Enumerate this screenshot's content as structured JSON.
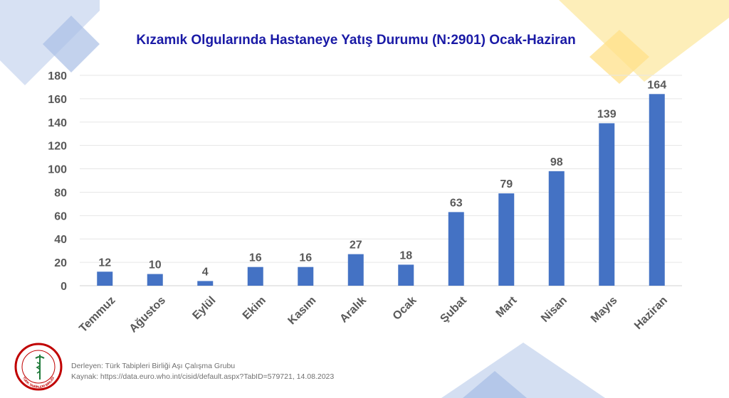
{
  "colors": {
    "bar": "#4472c4",
    "title": "#1a1aa6",
    "deco_blue": "#b4c7e7",
    "deco_yellow": "#ffe699"
  },
  "chart_data": {
    "type": "bar",
    "title": "Kızamık Olgularında Hastaneye Yatış Durumu (N:2901) Ocak-Haziran",
    "categories": [
      "Temmuz",
      "Ağustos",
      "Eylül",
      "Ekim",
      "Kasım",
      "Aralık",
      "Ocak",
      "Şubat",
      "Mart",
      "Nisan",
      "Mayıs",
      "Haziran"
    ],
    "values": [
      12,
      10,
      4,
      16,
      16,
      27,
      18,
      63,
      79,
      98,
      139,
      164
    ],
    "ylim": [
      0,
      180
    ],
    "yticks": [
      0,
      20,
      40,
      60,
      80,
      100,
      120,
      140,
      160,
      180
    ],
    "grid": true,
    "legend": "none",
    "data_labels": true
  },
  "footer": {
    "compiler": "Derleyen: Türk Tabipleri Birliği Aşı Çalışma Grubu",
    "source": "Kaynak: https://data.euro.who.int/cisid/default.aspx?TabID=579721, 14.08.2023"
  },
  "logo": {
    "text": "TÜRK TABİPLERİ BİRLİĞİ",
    "icon": "caduceus-crescent-logo-icon"
  }
}
